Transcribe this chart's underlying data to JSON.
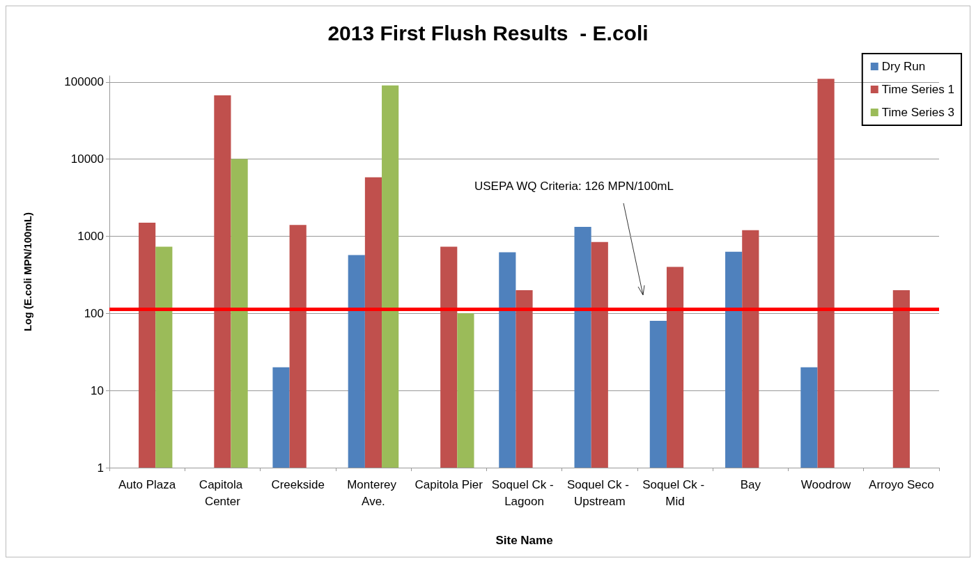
{
  "chart_data": {
    "type": "bar",
    "title": "2013 First Flush Results  - E.coli",
    "xlabel": "Site Name",
    "ylabel": "Log (E.coli MPN/100mL)",
    "categories": [
      "Auto Plaza",
      "Capitola Center",
      "Creekside",
      "Monterey Ave.",
      "Capitola Pier",
      "Soquel Ck - Lagoon",
      "Soquel Ck - Upstream",
      "Soquel Ck - Mid",
      "Bay",
      "Woodrow",
      "Arroyo Seco"
    ],
    "series": [
      {
        "name": "Dry Run",
        "color": "#4f81bd",
        "values": [
          null,
          null,
          20,
          570,
          null,
          620,
          1320,
          80,
          630,
          20,
          null
        ]
      },
      {
        "name": "Time Series 1",
        "color": "#c0504d",
        "values": [
          1500,
          67000,
          1400,
          5800,
          730,
          200,
          840,
          400,
          1200,
          110000,
          200
        ]
      },
      {
        "name": "Time Series 3",
        "color": "#9bbb59",
        "values": [
          730,
          10000,
          null,
          90000,
          100,
          null,
          null,
          null,
          null,
          null,
          null
        ]
      }
    ],
    "log": "y",
    "ylim": [
      1,
      120000
    ],
    "yticks": [
      1,
      10,
      100,
      1000,
      10000,
      100000
    ],
    "grid": "y",
    "legend": "top right",
    "ref_lines": [
      {
        "axis": "y",
        "value": 113,
        "color": "#ff0000"
      }
    ],
    "annotations": [
      "USEPA WQ Criteria: 126 MPN/100mL"
    ]
  }
}
